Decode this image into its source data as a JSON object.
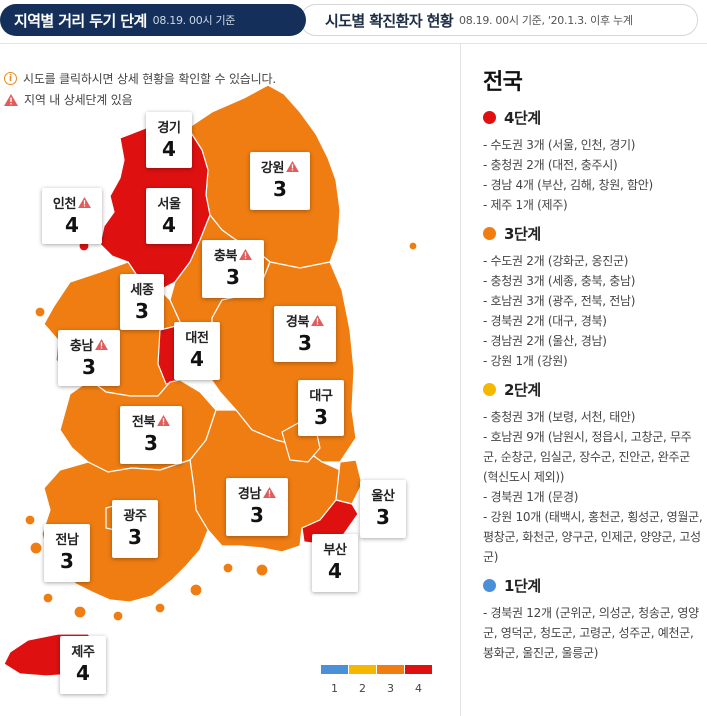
{
  "header": {
    "tab_active": {
      "title": "지역별 거리 두기 단계",
      "sub": "08.19. 00시 기준"
    },
    "tab_inactive": {
      "title": "시도별 확진환자 현황",
      "sub": "08.19. 00시 기준, '20.1.3. 이후 누계"
    }
  },
  "notes": {
    "click_info": "시도를 클릭하시면 상세 현황을 확인할 수 있습니다.",
    "detail_info": "지역 내 상세단계 있음"
  },
  "colors": {
    "level1": "#4a90d9",
    "level2": "#f5b800",
    "level3": "#ef7d12",
    "level4": "#de1010",
    "info": "#e58a22",
    "warn": "#e25c5c",
    "tab_active_bg": "#14305a"
  },
  "regions": {
    "gyeonggi": {
      "name": "경기",
      "level": "4",
      "has_detail": false
    },
    "incheon": {
      "name": "인천",
      "level": "4",
      "has_detail": true
    },
    "seoul": {
      "name": "서울",
      "level": "4",
      "has_detail": false
    },
    "gangwon": {
      "name": "강원",
      "level": "3",
      "has_detail": true
    },
    "chungbuk": {
      "name": "충북",
      "level": "3",
      "has_detail": true
    },
    "sejong": {
      "name": "세종",
      "level": "3",
      "has_detail": false
    },
    "chungnam": {
      "name": "충남",
      "level": "3",
      "has_detail": true
    },
    "daejeon": {
      "name": "대전",
      "level": "4",
      "has_detail": false
    },
    "gyeongbuk": {
      "name": "경북",
      "level": "3",
      "has_detail": true
    },
    "daegu": {
      "name": "대구",
      "level": "3",
      "has_detail": false
    },
    "jeonbuk": {
      "name": "전북",
      "level": "3",
      "has_detail": true
    },
    "gwangju": {
      "name": "광주",
      "level": "3",
      "has_detail": false
    },
    "gyeongnam": {
      "name": "경남",
      "level": "3",
      "has_detail": true
    },
    "ulsan": {
      "name": "울산",
      "level": "3",
      "has_detail": false
    },
    "busan": {
      "name": "부산",
      "level": "4",
      "has_detail": false
    },
    "jeonnam": {
      "name": "전남",
      "level": "3",
      "has_detail": false
    },
    "jeju": {
      "name": "제주",
      "level": "4",
      "has_detail": false
    }
  },
  "legend": [
    "1",
    "2",
    "3",
    "4"
  ],
  "panel": {
    "title": "전국",
    "levels": [
      {
        "name": "4단계",
        "color": "#de1010",
        "items": [
          "- 수도권 3개 (서울, 인천, 경기)",
          "- 충청권 2개 (대전, 충주시)",
          "- 경남 4개 (부산, 김해, 창원, 함안)",
          "- 제주 1개 (제주)"
        ]
      },
      {
        "name": "3단계",
        "color": "#ef7d12",
        "items": [
          "- 수도권 2개 (강화군, 옹진군)",
          "- 충청권 3개 (세종, 충북, 충남)",
          "- 호남권 3개 (광주, 전북, 전남)",
          "- 경북권 2개 (대구, 경북)",
          "- 경남권 2개 (울산, 경남)",
          "- 강원 1개 (강원)"
        ]
      },
      {
        "name": "2단계",
        "color": "#f5b800",
        "items": [
          "- 충청권 3개 (보령, 서천, 태안)",
          "- 호남권 9개 (남원시, 정읍시, 고창군, 무주군, 순창군, 임실군, 장수군, 진안군, 완주군(혁신도시 제외))",
          "- 경북권 1개 (문경)",
          "- 강원 10개 (태백시, 홍천군, 횡성군, 영월군, 평창군, 화천군, 양구군, 인제군, 양양군, 고성군)"
        ]
      },
      {
        "name": "1단계",
        "color": "#4a90d9",
        "items": [
          "- 경북권 12개 (군위군, 의성군, 청송군, 영양군, 영덕군, 청도군, 고령군, 성주군, 예천군, 봉화군, 울진군, 울릉군)"
        ]
      }
    ]
  }
}
